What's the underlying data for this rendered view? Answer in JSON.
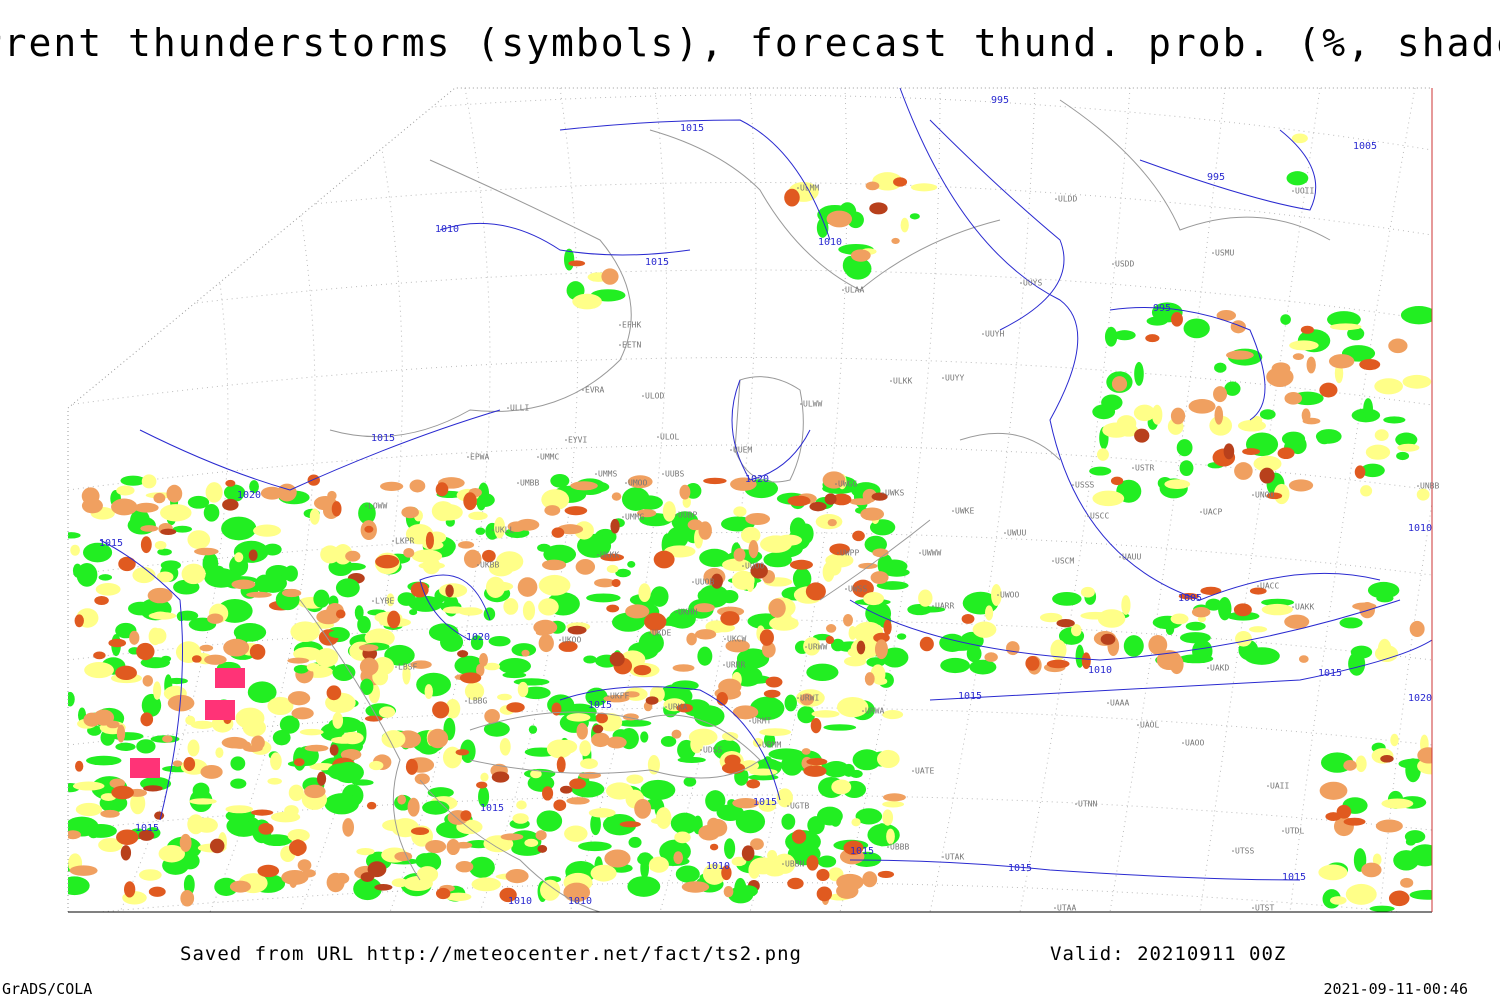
{
  "header": {
    "title": "Current thunderstorms (symbols), forecast thund. prob. (%, shaded)"
  },
  "map": {
    "isobar_labels": [
      "995",
      "1015",
      "1005",
      "995",
      "1010",
      "1015",
      "1010",
      "995",
      "1015",
      "1020",
      "1020",
      "1015",
      "1010",
      "1005",
      "1020",
      "1010",
      "1015",
      "1015",
      "1020",
      "1015",
      "1015",
      "1015",
      "1015",
      "1010",
      "1015",
      "1015",
      "1015",
      "1010",
      "1010"
    ],
    "station_labels": [
      "ULMM",
      "ULAA",
      "EFHK",
      "EETN",
      "EVRA",
      "ULOD",
      "ULOL",
      "UMMS",
      "UMOO",
      "UUBS",
      "UUEM",
      "ULWW",
      "ULKK",
      "UUYY",
      "UUYH",
      "UUYS",
      "ULDD",
      "UWGG",
      "UWKS",
      "USSS",
      "USCC",
      "USTR",
      "UNOO",
      "UACP",
      "USCM",
      "UAUU",
      "UWKE",
      "UWUU",
      "UWWW",
      "UWPP",
      "UWSS",
      "UARR",
      "UWOO",
      "URWW",
      "UKOO",
      "UKBB",
      "UUOB",
      "UUOO",
      "UKHH",
      "UKDE",
      "UKCW",
      "URRR",
      "URWI",
      "URMT",
      "URMM",
      "URWA",
      "UATE",
      "UTNN",
      "UAAA",
      "UAOL",
      "UAOO",
      "UAKD",
      "UAKK",
      "UACC",
      "UAII",
      "UTDL",
      "UTSS",
      "UTST",
      "UTAA",
      "UTAK",
      "UBBB",
      "UBBN",
      "UGTB",
      "UMBB",
      "UMMG",
      "UUBP",
      "UKKK",
      "UKLL",
      "EPWA",
      "EYVI",
      "UMMC",
      "LOWW",
      "LKPR",
      "LYBE",
      "LBSF",
      "LBBG",
      "UKFF",
      "URKA",
      "UDSS",
      "ULLI",
      "USDD",
      "USMU",
      "UOII",
      "UNBB"
    ]
  },
  "footer": {
    "source": "Saved from URL http://meteocenter.net/fact/ts2.png",
    "valid": "Valid: 20210911 00Z",
    "software": "GrADS/COLA",
    "timestamp": "2021-09-11-00:46"
  }
}
